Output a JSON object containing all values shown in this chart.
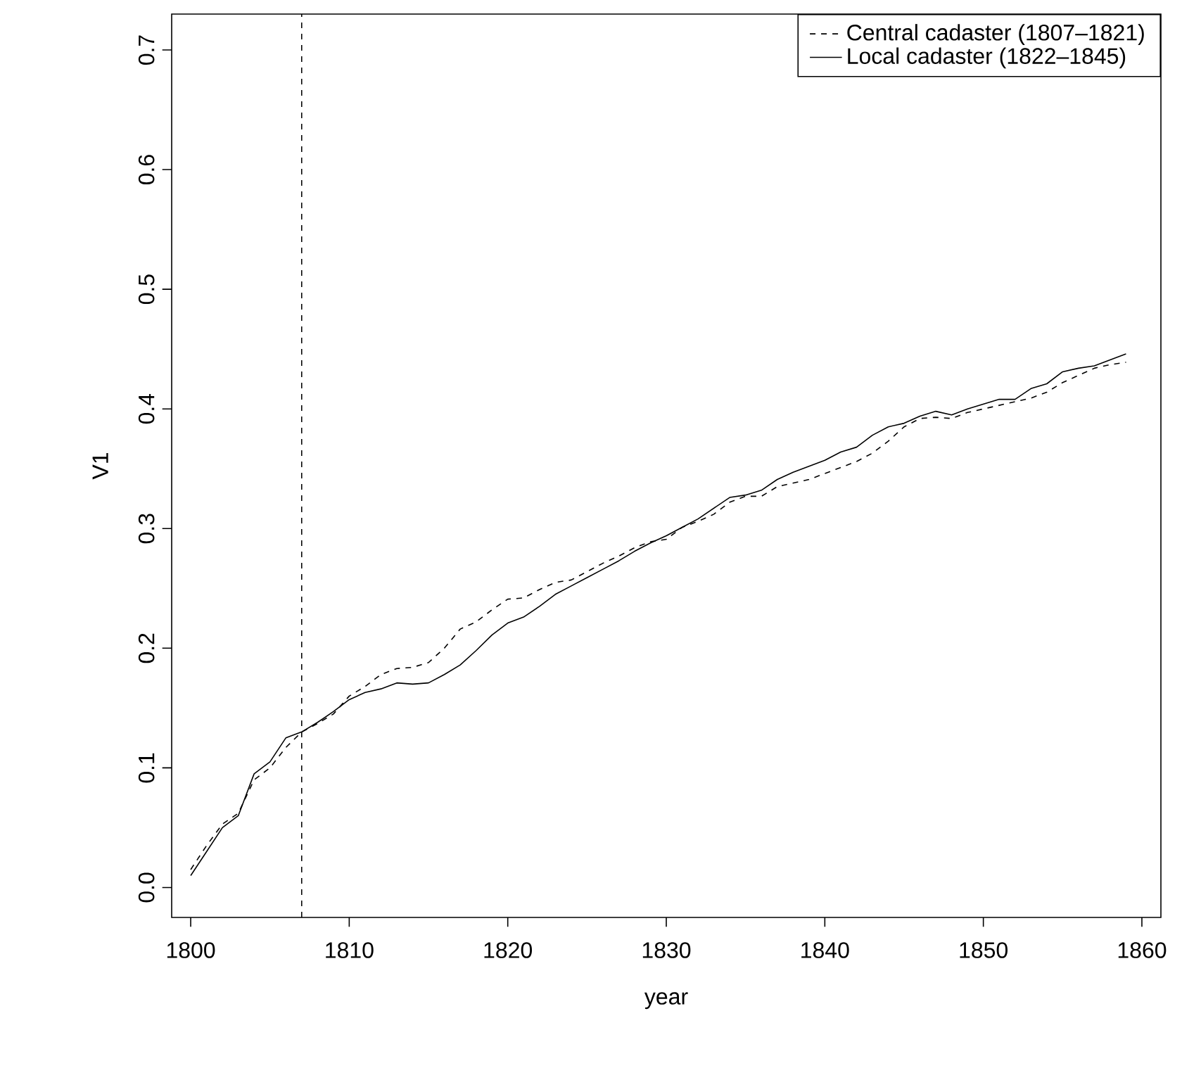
{
  "chart_data": {
    "type": "line",
    "xlabel": "year",
    "ylabel": "V1",
    "x": [
      1800,
      1801,
      1802,
      1803,
      1804,
      1805,
      1806,
      1807,
      1808,
      1809,
      1810,
      1811,
      1812,
      1813,
      1814,
      1815,
      1816,
      1817,
      1818,
      1819,
      1820,
      1821,
      1822,
      1823,
      1824,
      1825,
      1826,
      1827,
      1828,
      1829,
      1830,
      1831,
      1832,
      1833,
      1834,
      1835,
      1836,
      1837,
      1838,
      1839,
      1840,
      1841,
      1842,
      1843,
      1844,
      1845,
      1846,
      1847,
      1848,
      1849,
      1850,
      1851,
      1852,
      1853,
      1854,
      1855,
      1856,
      1857,
      1858,
      1859
    ],
    "series": [
      {
        "name": "Central cadaster (1807–1821)",
        "color": "#000000",
        "line_style": "dashed",
        "values": [
          0.015,
          0.035,
          0.053,
          0.062,
          0.09,
          0.1,
          0.117,
          0.13,
          0.137,
          0.145,
          0.16,
          0.168,
          0.178,
          0.183,
          0.184,
          0.188,
          0.2,
          0.216,
          0.222,
          0.232,
          0.241,
          0.242,
          0.249,
          0.255,
          0.257,
          0.264,
          0.271,
          0.277,
          0.284,
          0.289,
          0.291,
          0.301,
          0.306,
          0.312,
          0.322,
          0.327,
          0.327,
          0.335,
          0.338,
          0.341,
          0.346,
          0.351,
          0.356,
          0.363,
          0.373,
          0.385,
          0.392,
          0.393,
          0.392,
          0.397,
          0.4,
          0.403,
          0.406,
          0.409,
          0.414,
          0.422,
          0.428,
          0.434,
          0.437,
          0.439
        ]
      },
      {
        "name": "Local cadaster (1822–1845)",
        "color": "#000000",
        "line_style": "solid",
        "values": [
          0.01,
          0.03,
          0.05,
          0.06,
          0.095,
          0.105,
          0.125,
          0.13,
          0.138,
          0.147,
          0.157,
          0.163,
          0.166,
          0.171,
          0.17,
          0.171,
          0.178,
          0.186,
          0.198,
          0.211,
          0.221,
          0.226,
          0.235,
          0.245,
          0.252,
          0.259,
          0.266,
          0.273,
          0.281,
          0.288,
          0.294,
          0.301,
          0.308,
          0.317,
          0.326,
          0.328,
          0.332,
          0.341,
          0.347,
          0.352,
          0.357,
          0.364,
          0.368,
          0.378,
          0.385,
          0.388,
          0.394,
          0.398,
          0.395,
          0.4,
          0.404,
          0.408,
          0.408,
          0.417,
          0.421,
          0.431,
          0.434,
          0.436,
          0.441,
          0.446
        ]
      }
    ],
    "xlim": [
      1798.8,
      1861.2
    ],
    "ylim": [
      -0.025,
      0.73
    ],
    "xticks": [
      1800,
      1810,
      1820,
      1830,
      1840,
      1850,
      1860
    ],
    "yticks": [
      {
        "value": 0,
        "label": "0.0"
      },
      {
        "value": 0.1,
        "label": "0.1"
      },
      {
        "value": 0.2,
        "label": "0.2"
      },
      {
        "value": 0.3,
        "label": "0.3"
      },
      {
        "value": 0.4,
        "label": "0.4"
      },
      {
        "value": 0.5,
        "label": "0.5"
      },
      {
        "value": 0.6,
        "label": "0.6"
      },
      {
        "value": 0.7,
        "label": "0.7"
      }
    ],
    "ref_lines": [
      {
        "axis": "x",
        "value": 1807,
        "line_style": "dashed",
        "color": "#000000"
      }
    ],
    "legend": "top right",
    "grid": false,
    "marker": "none"
  }
}
